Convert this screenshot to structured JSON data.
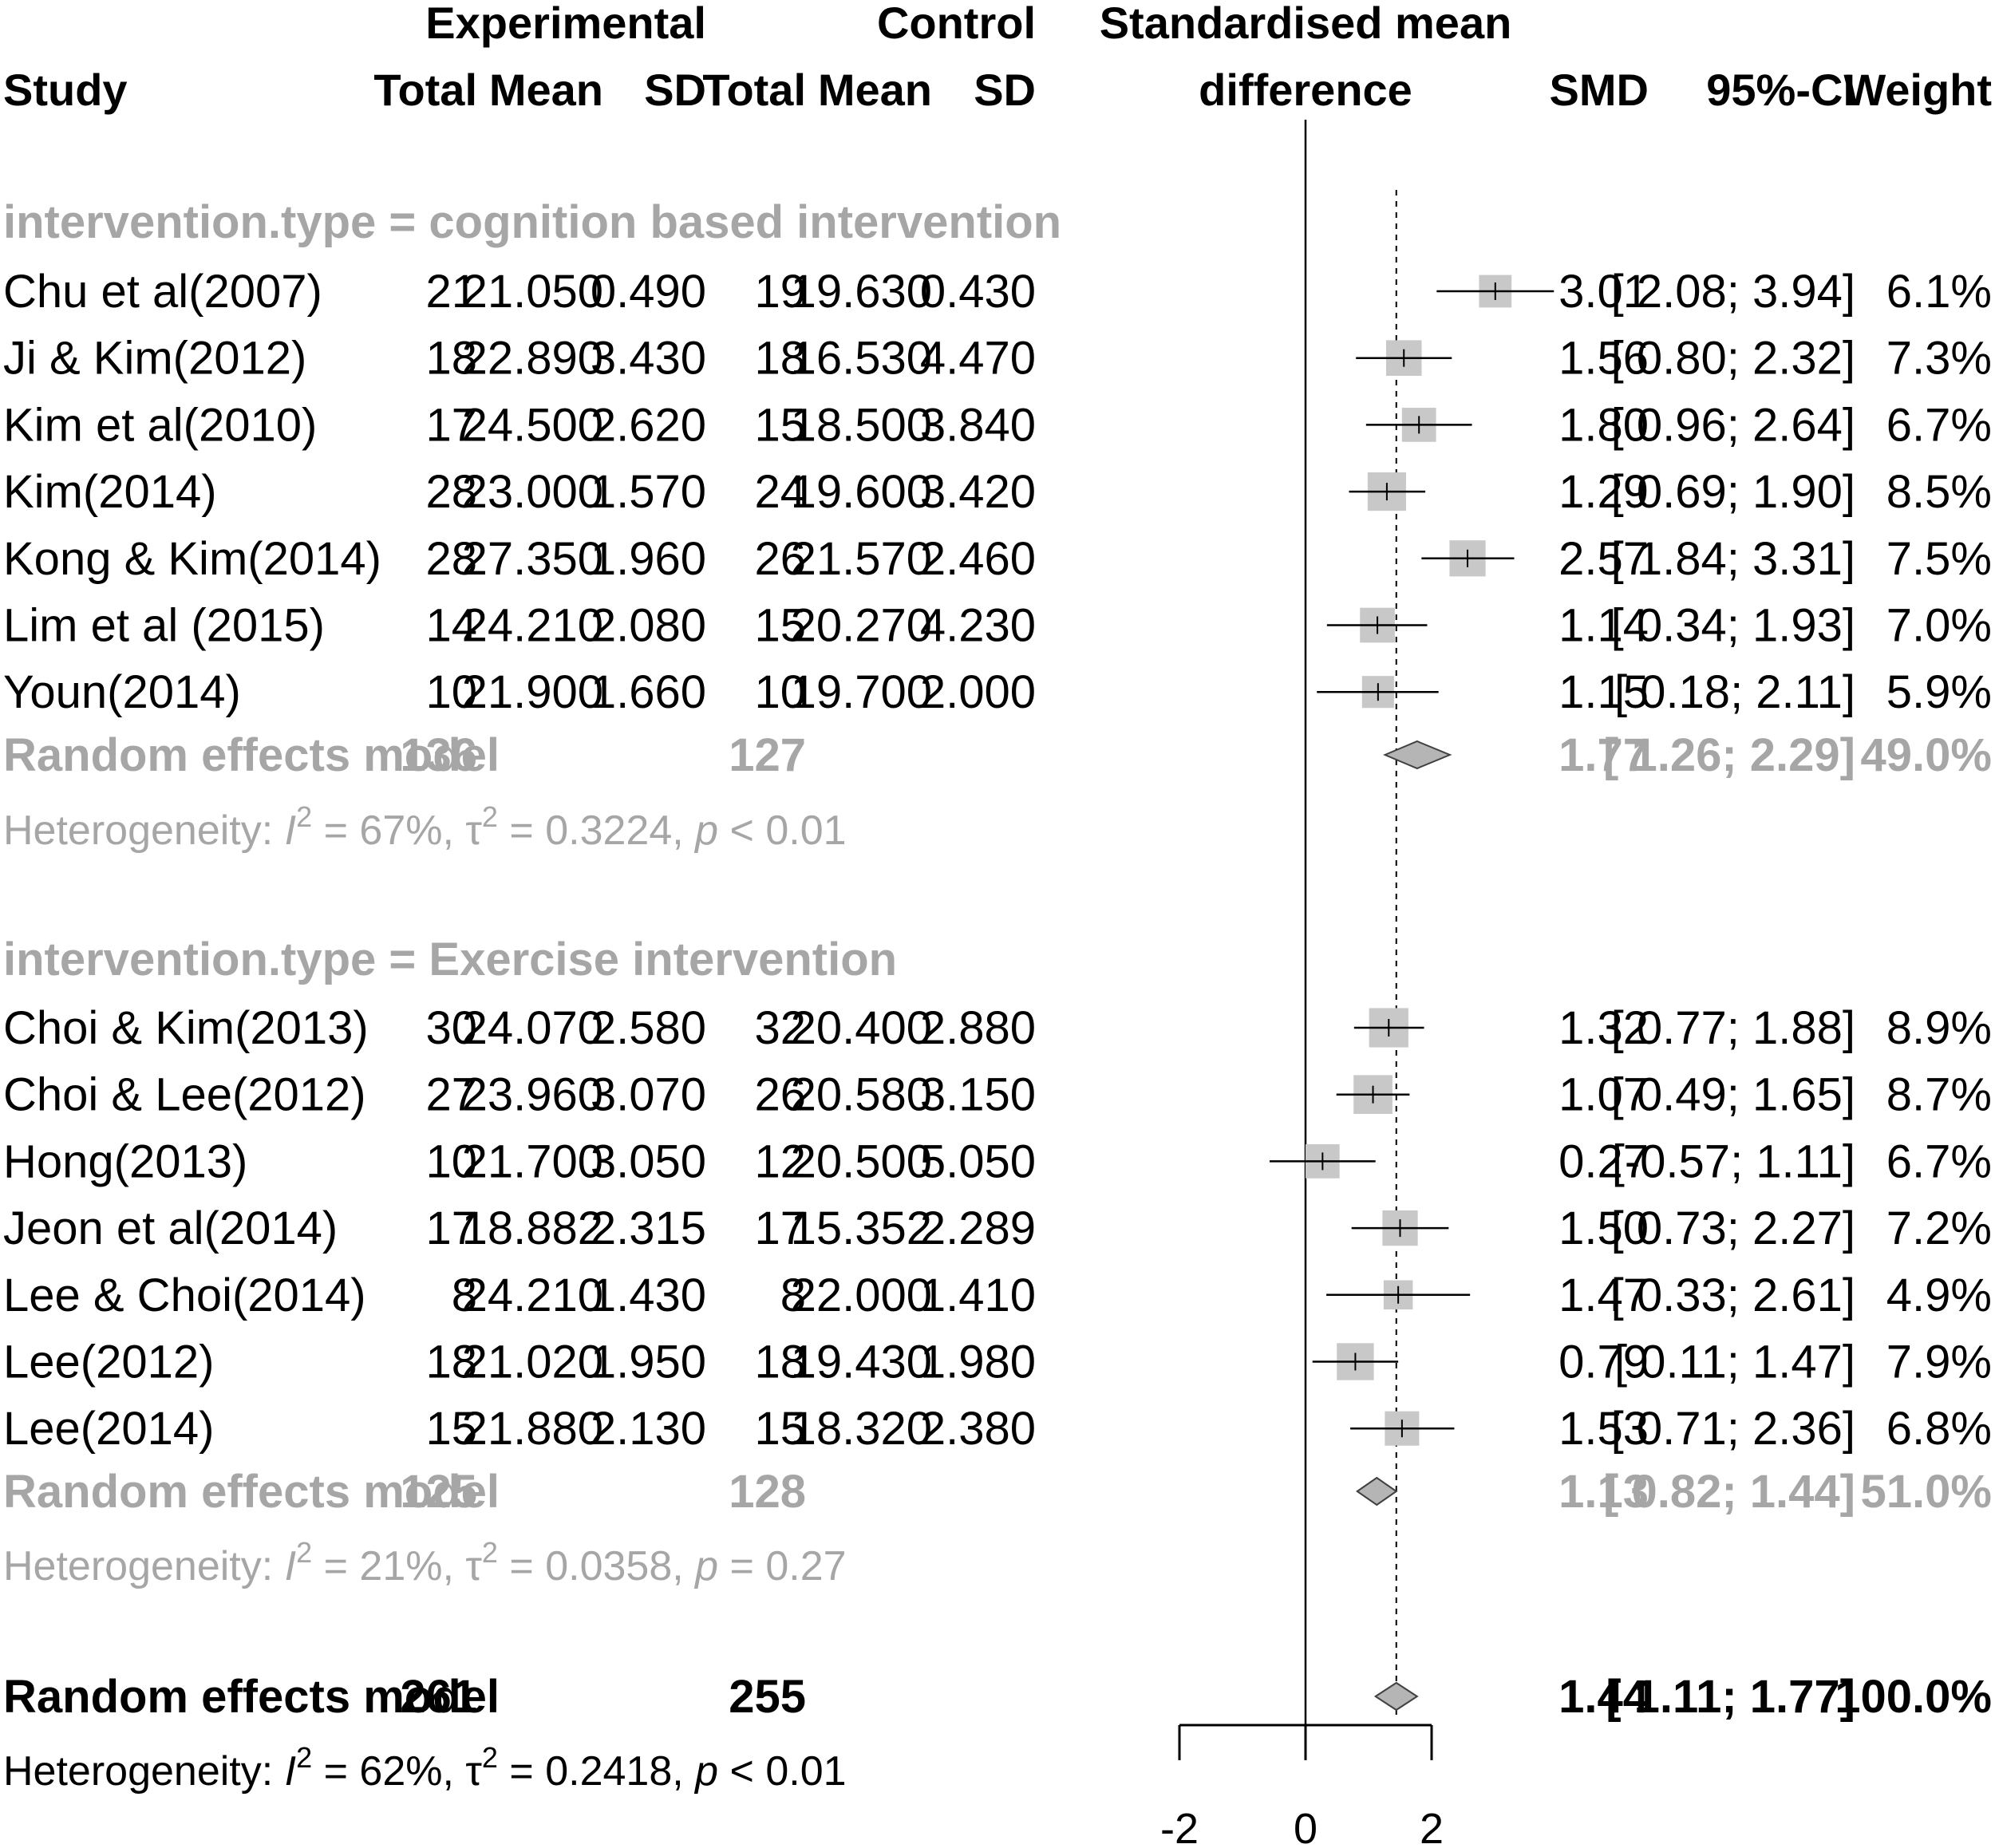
{
  "chart_data": {
    "type": "forest",
    "headers": {
      "experimental": "Experimental",
      "control": "Control",
      "axis_title_1": "Standardised mean",
      "axis_title_2": "difference",
      "study": "Study",
      "total": "Total",
      "mean": "Mean",
      "sd": "SD",
      "smd": "SMD",
      "ci": "95%-CI",
      "weight": "Weight"
    },
    "x_ticks": [
      "-2",
      "0",
      "2"
    ],
    "xlim": [
      -2,
      2
    ],
    "overall_smd": 1.44,
    "groups": [
      {
        "label": "intervention.type = cognition based intervention",
        "studies": [
          {
            "study": "Chu et al(2007)",
            "e_total": "21",
            "e_mean": "21.050",
            "e_sd": "0.490",
            "c_total": "19",
            "c_mean": "19.630",
            "c_sd": "0.430",
            "smd": 3.01,
            "lo": 2.08,
            "hi": 3.94,
            "smd_text": "3.01",
            "ci_text": "[ 2.08; 3.94]",
            "weight_text": "6.1%",
            "weight": 6.1
          },
          {
            "study": "Ji & Kim(2012)",
            "e_total": "18",
            "e_mean": "22.890",
            "e_sd": "3.430",
            "c_total": "18",
            "c_mean": "16.530",
            "c_sd": "4.470",
            "smd": 1.56,
            "lo": 0.8,
            "hi": 2.32,
            "smd_text": "1.56",
            "ci_text": "[ 0.80; 2.32]",
            "weight_text": "7.3%",
            "weight": 7.3
          },
          {
            "study": "Kim et al(2010)",
            "e_total": "17",
            "e_mean": "24.500",
            "e_sd": "2.620",
            "c_total": "15",
            "c_mean": "18.500",
            "c_sd": "3.840",
            "smd": 1.8,
            "lo": 0.96,
            "hi": 2.64,
            "smd_text": "1.80",
            "ci_text": "[ 0.96; 2.64]",
            "weight_text": "6.7%",
            "weight": 6.7
          },
          {
            "study": "Kim(2014)",
            "e_total": "28",
            "e_mean": "23.000",
            "e_sd": "1.570",
            "c_total": "24",
            "c_mean": "19.600",
            "c_sd": "3.420",
            "smd": 1.29,
            "lo": 0.69,
            "hi": 1.9,
            "smd_text": "1.29",
            "ci_text": "[ 0.69; 1.90]",
            "weight_text": "8.5%",
            "weight": 8.5
          },
          {
            "study": "Kong & Kim(2014)",
            "e_total": "28",
            "e_mean": "27.350",
            "e_sd": "1.960",
            "c_total": "26",
            "c_mean": "21.570",
            "c_sd": "2.460",
            "smd": 2.57,
            "lo": 1.84,
            "hi": 3.31,
            "smd_text": "2.57",
            "ci_text": "[ 1.84; 3.31]",
            "weight_text": "7.5%",
            "weight": 7.5
          },
          {
            "study": "Lim et al (2015)",
            "e_total": "14",
            "e_mean": "24.210",
            "e_sd": "2.080",
            "c_total": "15",
            "c_mean": "20.270",
            "c_sd": "4.230",
            "smd": 1.14,
            "lo": 0.34,
            "hi": 1.93,
            "smd_text": "1.14",
            "ci_text": "[ 0.34; 1.93]",
            "weight_text": "7.0%",
            "weight": 7.0
          },
          {
            "study": "Youn(2014)",
            "e_total": "10",
            "e_mean": "21.900",
            "e_sd": "1.660",
            "c_total": "10",
            "c_mean": "19.700",
            "c_sd": "2.000",
            "smd": 1.15,
            "lo": 0.18,
            "hi": 2.11,
            "smd_text": "1.15",
            "ci_text": "[ 0.18; 2.11]",
            "weight_text": "5.9%",
            "weight": 5.9
          }
        ],
        "summary": {
          "label": "Random effects model",
          "e_total": "136",
          "c_total": "127",
          "smd": 1.77,
          "lo": 1.26,
          "hi": 2.29,
          "smd_text": "1.77",
          "ci_text": "[ 1.26; 2.29]",
          "weight_text": "49.0%"
        },
        "heterogeneity": {
          "prefix": "Heterogeneity: ",
          "i2": "= 67%, ",
          "tau2": "= 0.3224, ",
          "p": "< 0.01"
        }
      },
      {
        "label": "intervention.type = Exercise intervention",
        "studies": [
          {
            "study": "Choi & Kim(2013)",
            "e_total": "30",
            "e_mean": "24.070",
            "e_sd": "2.580",
            "c_total": "32",
            "c_mean": "20.400",
            "c_sd": "2.880",
            "smd": 1.32,
            "lo": 0.77,
            "hi": 1.88,
            "smd_text": "1.32",
            "ci_text": "[ 0.77; 1.88]",
            "weight_text": "8.9%",
            "weight": 8.9
          },
          {
            "study": "Choi & Lee(2012)",
            "e_total": "27",
            "e_mean": "23.960",
            "e_sd": "3.070",
            "c_total": "26",
            "c_mean": "20.580",
            "c_sd": "3.150",
            "smd": 1.07,
            "lo": 0.49,
            "hi": 1.65,
            "smd_text": "1.07",
            "ci_text": "[ 0.49; 1.65]",
            "weight_text": "8.7%",
            "weight": 8.7
          },
          {
            "study": "Hong(2013)",
            "e_total": "10",
            "e_mean": "21.700",
            "e_sd": "3.050",
            "c_total": "12",
            "c_mean": "20.500",
            "c_sd": "5.050",
            "smd": 0.27,
            "lo": -0.57,
            "hi": 1.11,
            "smd_text": "0.27",
            "ci_text": "[-0.57; 1.11]",
            "weight_text": "6.7%",
            "weight": 6.7
          },
          {
            "study": "Jeon et al(2014)",
            "e_total": "17",
            "e_mean": "18.882",
            "e_sd": "2.315",
            "c_total": "17",
            "c_mean": "15.352",
            "c_sd": "2.289",
            "smd": 1.5,
            "lo": 0.73,
            "hi": 2.27,
            "smd_text": "1.50",
            "ci_text": "[ 0.73; 2.27]",
            "weight_text": "7.2%",
            "weight": 7.2
          },
          {
            "study": "Lee & Choi(2014)",
            "e_total": "8",
            "e_mean": "24.210",
            "e_sd": "1.430",
            "c_total": "8",
            "c_mean": "22.000",
            "c_sd": "1.410",
            "smd": 1.47,
            "lo": 0.33,
            "hi": 2.61,
            "smd_text": "1.47",
            "ci_text": "[ 0.33; 2.61]",
            "weight_text": "4.9%",
            "weight": 4.9
          },
          {
            "study": "Lee(2012)",
            "e_total": "18",
            "e_mean": "21.020",
            "e_sd": "1.950",
            "c_total": "18",
            "c_mean": "19.430",
            "c_sd": "1.980",
            "smd": 0.79,
            "lo": 0.11,
            "hi": 1.47,
            "smd_text": "0.79",
            "ci_text": "[ 0.11; 1.47]",
            "weight_text": "7.9%",
            "weight": 7.9
          },
          {
            "study": "Lee(2014)",
            "e_total": "15",
            "e_mean": "21.880",
            "e_sd": "2.130",
            "c_total": "15",
            "c_mean": "18.320",
            "c_sd": "2.380",
            "smd": 1.53,
            "lo": 0.71,
            "hi": 2.36,
            "smd_text": "1.53",
            "ci_text": "[ 0.71; 2.36]",
            "weight_text": "6.8%",
            "weight": 6.8
          }
        ],
        "summary": {
          "label": "Random effects model",
          "e_total": "125",
          "c_total": "128",
          "smd": 1.13,
          "lo": 0.82,
          "hi": 1.44,
          "smd_text": "1.13",
          "ci_text": "[ 0.82; 1.44]",
          "weight_text": "51.0%"
        },
        "heterogeneity": {
          "prefix": "Heterogeneity: ",
          "i2": "= 21%, ",
          "tau2": "= 0.0358, ",
          "p": "= 0.27"
        }
      }
    ],
    "overall": {
      "label": "Random effects model",
      "e_total": "261",
      "c_total": "255",
      "smd": 1.44,
      "lo": 1.11,
      "hi": 1.77,
      "smd_text": "1.44",
      "ci_text": "[ 1.11; 1.77]",
      "weight_text": "100.0%",
      "heterogeneity": {
        "prefix": "Heterogeneity: ",
        "i2": "= 62%, ",
        "tau2": "= 0.2418, ",
        "p": "< 0.01"
      }
    }
  }
}
